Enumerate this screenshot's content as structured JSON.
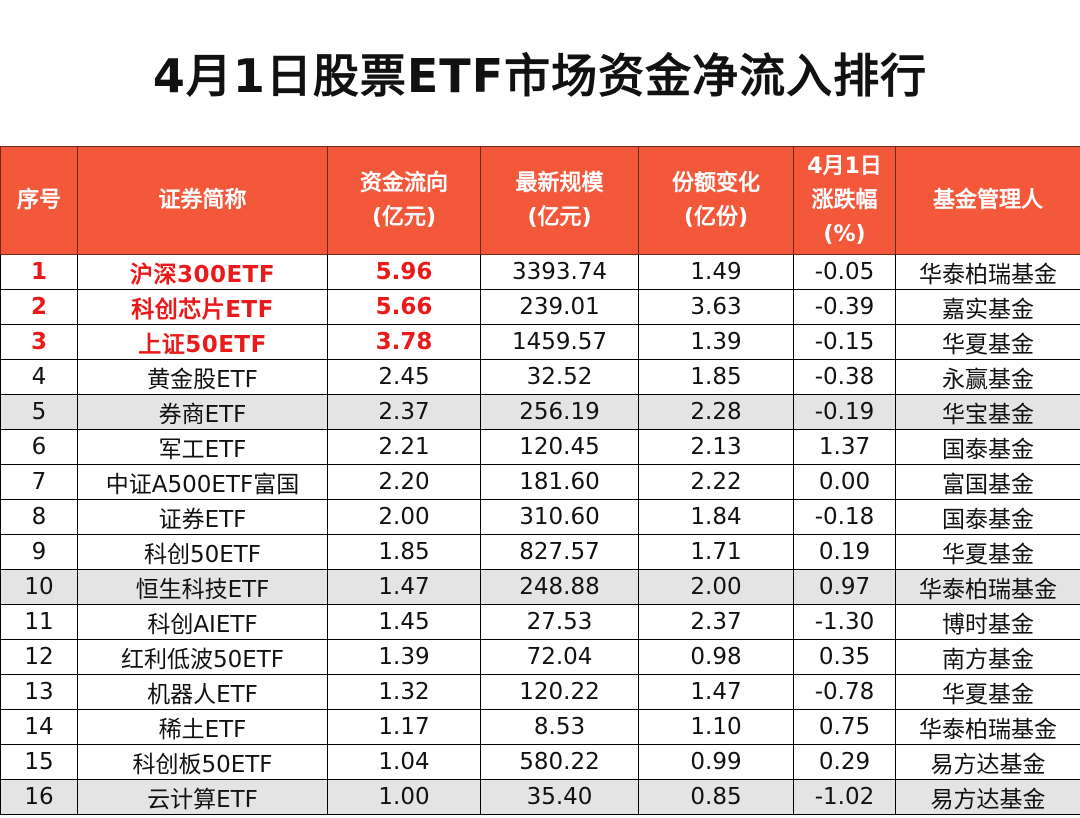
{
  "title": "4月1日股票ETF市场资金净流入排行",
  "headers": {
    "rank": "序号",
    "name": "证券简称",
    "flow_line1": "资金流向",
    "flow_line2": "(亿元)",
    "scale_line1": "最新规模",
    "scale_line2": "(亿元)",
    "shares_line1": "份额变化",
    "shares_line2": "(亿份)",
    "change_line1": "4月1日",
    "change_line2": "涨跌幅",
    "change_line3": "(%)",
    "manager": "基金管理人"
  },
  "rows": [
    {
      "rank": "1",
      "name": "沪深300ETF",
      "flow": "5.96",
      "scale": "3393.74",
      "shares": "1.49",
      "change": "-0.05",
      "manager": "华泰柏瑞基金"
    },
    {
      "rank": "2",
      "name": "科创芯片ETF",
      "flow": "5.66",
      "scale": "239.01",
      "shares": "3.63",
      "change": "-0.39",
      "manager": "嘉实基金"
    },
    {
      "rank": "3",
      "name": "上证50ETF",
      "flow": "3.78",
      "scale": "1459.57",
      "shares": "1.39",
      "change": "-0.15",
      "manager": "华夏基金"
    },
    {
      "rank": "4",
      "name": "黄金股ETF",
      "flow": "2.45",
      "scale": "32.52",
      "shares": "1.85",
      "change": "-0.38",
      "manager": "永赢基金"
    },
    {
      "rank": "5",
      "name": "券商ETF",
      "flow": "2.37",
      "scale": "256.19",
      "shares": "2.28",
      "change": "-0.19",
      "manager": "华宝基金"
    },
    {
      "rank": "6",
      "name": "军工ETF",
      "flow": "2.21",
      "scale": "120.45",
      "shares": "2.13",
      "change": "1.37",
      "manager": "国泰基金"
    },
    {
      "rank": "7",
      "name": "中证A500ETF富国",
      "flow": "2.20",
      "scale": "181.60",
      "shares": "2.22",
      "change": "0.00",
      "manager": "富国基金"
    },
    {
      "rank": "8",
      "name": "证券ETF",
      "flow": "2.00",
      "scale": "310.60",
      "shares": "1.84",
      "change": "-0.18",
      "manager": "国泰基金"
    },
    {
      "rank": "9",
      "name": "科创50ETF",
      "flow": "1.85",
      "scale": "827.57",
      "shares": "1.71",
      "change": "0.19",
      "manager": "华夏基金"
    },
    {
      "rank": "10",
      "name": "恒生科技ETF",
      "flow": "1.47",
      "scale": "248.88",
      "shares": "2.00",
      "change": "0.97",
      "manager": "华泰柏瑞基金"
    },
    {
      "rank": "11",
      "name": "科创AIETF",
      "flow": "1.45",
      "scale": "27.53",
      "shares": "2.37",
      "change": "-1.30",
      "manager": "博时基金"
    },
    {
      "rank": "12",
      "name": "红利低波50ETF",
      "flow": "1.39",
      "scale": "72.04",
      "shares": "0.98",
      "change": "0.35",
      "manager": "南方基金"
    },
    {
      "rank": "13",
      "name": "机器人ETF",
      "flow": "1.32",
      "scale": "120.22",
      "shares": "1.47",
      "change": "-0.78",
      "manager": "华夏基金"
    },
    {
      "rank": "14",
      "name": "稀土ETF",
      "flow": "1.17",
      "scale": "8.53",
      "shares": "1.10",
      "change": "0.75",
      "manager": "华泰柏瑞基金"
    },
    {
      "rank": "15",
      "name": "科创板50ETF",
      "flow": "1.04",
      "scale": "580.22",
      "shares": "0.99",
      "change": "0.29",
      "manager": "易方达基金"
    },
    {
      "rank": "16",
      "name": "云计算ETF",
      "flow": "1.00",
      "scale": "35.40",
      "shares": "0.85",
      "change": "-1.02",
      "manager": "易方达基金"
    }
  ],
  "colors": {
    "header_bg": "#f4583b",
    "highlight_text": "#ea1a1a",
    "shaded_row_bg": "#e4e4e4"
  },
  "highlighted_rows": [
    1,
    2,
    3
  ],
  "shaded_rows": [
    5,
    10,
    16
  ]
}
